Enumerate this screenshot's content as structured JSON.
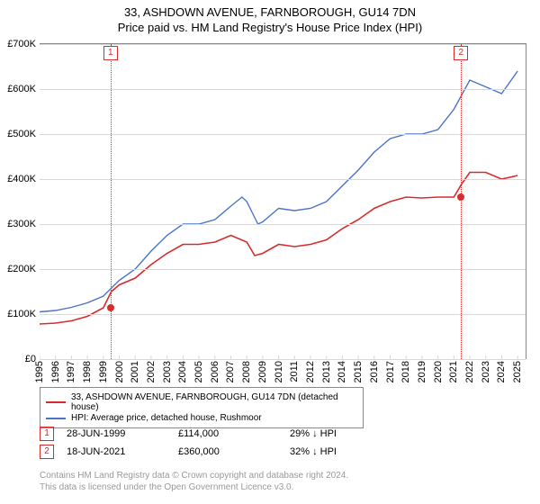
{
  "title_line1": "33, ASHDOWN AVENUE, FARNBOROUGH, GU14 7DN",
  "title_line2": "Price paid vs. HM Land Registry's House Price Index (HPI)",
  "chart": {
    "type": "line",
    "background_color": "#ffffff",
    "grid_color": "#d8d8d8",
    "axis_color": "#888888",
    "text_color": "#000000",
    "label_fontsize": 11,
    "title_fontsize": 13,
    "x_years": [
      1995,
      1996,
      1997,
      1998,
      1999,
      2000,
      2001,
      2002,
      2003,
      2004,
      2005,
      2006,
      2007,
      2008,
      2009,
      2010,
      2011,
      2012,
      2013,
      2014,
      2015,
      2016,
      2017,
      2018,
      2019,
      2020,
      2021,
      2022,
      2023,
      2024,
      2025
    ],
    "xlim": [
      1995,
      2025.5
    ],
    "ylim": [
      0,
      700000
    ],
    "ytick_step": 100000,
    "ytick_labels": [
      "£0",
      "£100K",
      "£200K",
      "£300K",
      "£400K",
      "£500K",
      "£600K",
      "£700K"
    ],
    "series": [
      {
        "name": "price_paid",
        "label": "33, ASHDOWN AVENUE, FARNBOROUGH, GU14 7DN (detached house)",
        "color": "#d82c2c",
        "line_width": 1.6,
        "data": [
          [
            1995,
            78000
          ],
          [
            1996,
            80000
          ],
          [
            1997,
            85000
          ],
          [
            1998,
            95000
          ],
          [
            1999,
            114000
          ],
          [
            1999.5,
            150000
          ],
          [
            2000,
            165000
          ],
          [
            2001,
            180000
          ],
          [
            2002,
            210000
          ],
          [
            2003,
            235000
          ],
          [
            2004,
            255000
          ],
          [
            2005,
            255000
          ],
          [
            2006,
            260000
          ],
          [
            2007,
            275000
          ],
          [
            2008,
            260000
          ],
          [
            2008.5,
            230000
          ],
          [
            2009,
            235000
          ],
          [
            2010,
            255000
          ],
          [
            2011,
            250000
          ],
          [
            2012,
            255000
          ],
          [
            2013,
            265000
          ],
          [
            2014,
            290000
          ],
          [
            2015,
            310000
          ],
          [
            2016,
            335000
          ],
          [
            2017,
            350000
          ],
          [
            2018,
            360000
          ],
          [
            2019,
            358000
          ],
          [
            2020,
            360000
          ],
          [
            2021,
            360000
          ],
          [
            2021.5,
            390000
          ],
          [
            2022,
            415000
          ],
          [
            2023,
            415000
          ],
          [
            2024,
            400000
          ],
          [
            2025,
            408000
          ]
        ]
      },
      {
        "name": "hpi",
        "label": "HPI: Average price, detached house, Rushmoor",
        "color": "#4a74c9",
        "line_width": 1.4,
        "data": [
          [
            1995,
            105000
          ],
          [
            1996,
            108000
          ],
          [
            1997,
            115000
          ],
          [
            1998,
            125000
          ],
          [
            1999,
            140000
          ],
          [
            2000,
            175000
          ],
          [
            2001,
            200000
          ],
          [
            2002,
            240000
          ],
          [
            2003,
            275000
          ],
          [
            2004,
            300000
          ],
          [
            2005,
            300000
          ],
          [
            2006,
            310000
          ],
          [
            2007,
            340000
          ],
          [
            2007.7,
            360000
          ],
          [
            2008,
            350000
          ],
          [
            2008.7,
            300000
          ],
          [
            2009,
            305000
          ],
          [
            2010,
            335000
          ],
          [
            2011,
            330000
          ],
          [
            2012,
            335000
          ],
          [
            2013,
            350000
          ],
          [
            2014,
            385000
          ],
          [
            2015,
            420000
          ],
          [
            2016,
            460000
          ],
          [
            2017,
            490000
          ],
          [
            2018,
            500000
          ],
          [
            2019,
            500000
          ],
          [
            2020,
            510000
          ],
          [
            2021,
            555000
          ],
          [
            2022,
            620000
          ],
          [
            2023,
            605000
          ],
          [
            2024,
            590000
          ],
          [
            2025,
            640000
          ]
        ]
      }
    ],
    "vertical_markers": [
      {
        "id": "1",
        "year": 1999.45,
        "color": "#d82c2c",
        "price_y": 114000
      },
      {
        "id": "2",
        "year": 2021.45,
        "color": "#d82c2c",
        "price_y": 360000
      }
    ]
  },
  "legend": {
    "series1_label": "33, ASHDOWN AVENUE, FARNBOROUGH, GU14 7DN (detached house)",
    "series2_label": "HPI: Average price, detached house, Rushmoor"
  },
  "marker_rows": [
    {
      "id": "1",
      "date": "28-JUN-1999",
      "price": "£114,000",
      "delta": "29% ↓ HPI",
      "color": "#d82c2c"
    },
    {
      "id": "2",
      "date": "18-JUN-2021",
      "price": "£360,000",
      "delta": "32% ↓ HPI",
      "color": "#d82c2c"
    }
  ],
  "footer_line1": "Contains HM Land Registry data © Crown copyright and database right 2024.",
  "footer_line2": "This data is licensed under the Open Government Licence v3.0.",
  "footer_color": "#9a9a9a"
}
